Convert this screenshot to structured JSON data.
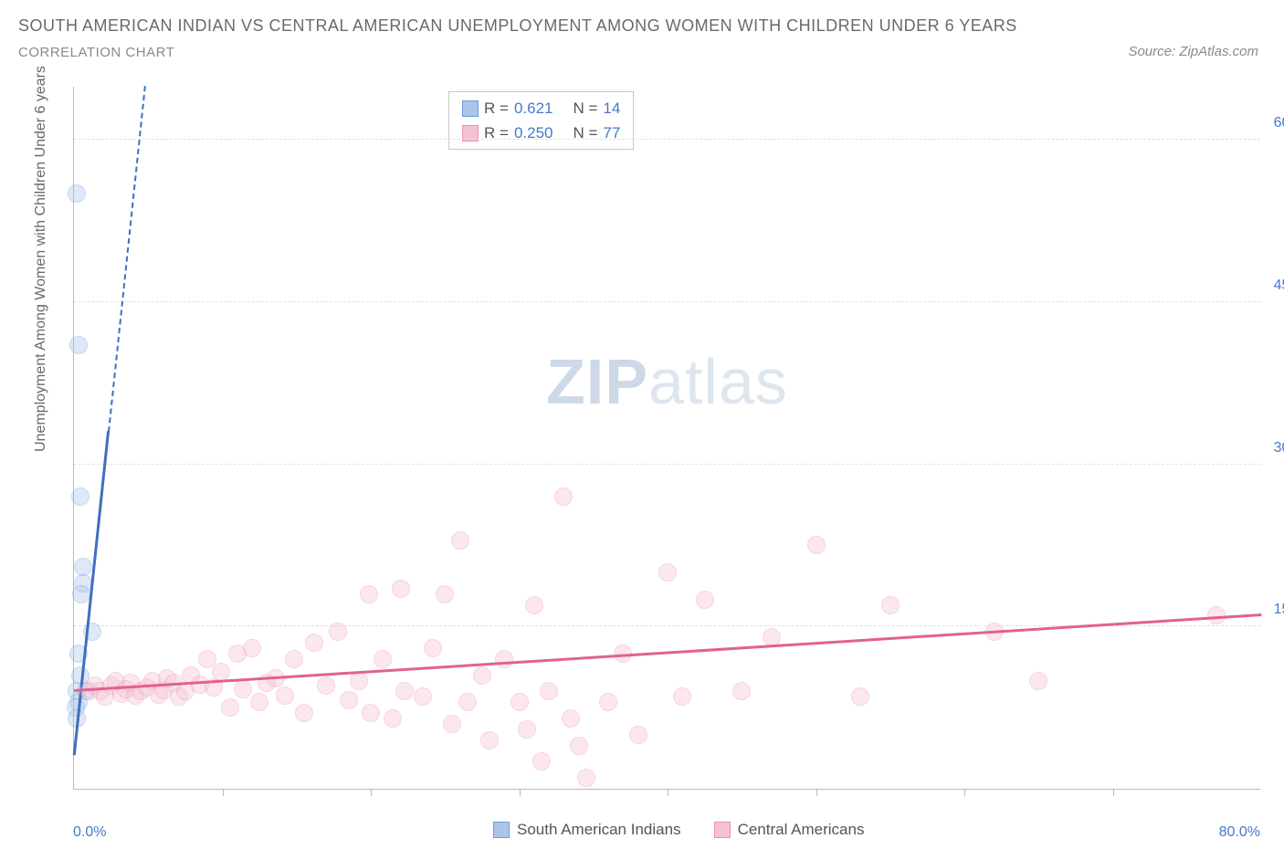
{
  "title": "SOUTH AMERICAN INDIAN VS CENTRAL AMERICAN UNEMPLOYMENT AMONG WOMEN WITH CHILDREN UNDER 6 YEARS",
  "subtitle": "CORRELATION CHART",
  "source": "Source: ZipAtlas.com",
  "ylabel": "Unemployment Among Women with Children Under 6 years",
  "watermark_a": "ZIP",
  "watermark_b": "atlas",
  "chart": {
    "type": "scatter",
    "xlim": [
      0,
      80
    ],
    "ylim": [
      0,
      65
    ],
    "x_axis_labels": {
      "left": "0.0%",
      "right": "80.0%"
    },
    "y_ticks": [
      {
        "v": 15,
        "label": "15.0%"
      },
      {
        "v": 30,
        "label": "30.0%"
      },
      {
        "v": 45,
        "label": "45.0%"
      },
      {
        "v": 60,
        "label": "60.0%"
      }
    ],
    "x_tick_positions": [
      10,
      20,
      30,
      40,
      50,
      60,
      70
    ],
    "grid_color": "#e0e0e0",
    "axis_color": "#b8b8b8",
    "background_color": "#ffffff",
    "marker_radius": 10,
    "marker_opacity": 0.38,
    "label_fontsize": 16,
    "tick_color": "#4878c8"
  },
  "series": [
    {
      "name": "South American Indians",
      "fill": "#a9c5ea",
      "stroke": "#6f9bd8",
      "trend_color": "#3f6fbf",
      "trend": {
        "x1": 0.0,
        "y1": 3.0,
        "x2": 2.3,
        "y2": 33.0,
        "dash_to_y": 65.0
      },
      "points": [
        [
          0.2,
          55.0
        ],
        [
          0.3,
          41.0
        ],
        [
          0.4,
          27.0
        ],
        [
          0.6,
          20.5
        ],
        [
          0.6,
          19.0
        ],
        [
          0.5,
          18.0
        ],
        [
          1.2,
          14.5
        ],
        [
          0.3,
          12.5
        ],
        [
          0.4,
          10.5
        ],
        [
          0.8,
          9.0
        ],
        [
          0.2,
          9.0
        ],
        [
          0.3,
          8.0
        ],
        [
          0.15,
          7.5
        ],
        [
          0.2,
          6.5
        ]
      ]
    },
    {
      "name": "Central Americans",
      "fill": "#f6c2d1",
      "stroke": "#eb8fb0",
      "trend_color": "#e26092",
      "trend": {
        "x1": 0.0,
        "y1": 9.0,
        "x2": 80.0,
        "y2": 16.0
      },
      "points": [
        [
          1.0,
          9.0
        ],
        [
          1.4,
          9.5
        ],
        [
          1.8,
          9.0
        ],
        [
          2.1,
          8.5
        ],
        [
          2.5,
          9.5
        ],
        [
          2.8,
          10.0
        ],
        [
          3.2,
          8.8
        ],
        [
          3.5,
          9.2
        ],
        [
          3.8,
          9.8
        ],
        [
          4.1,
          8.6
        ],
        [
          4.5,
          9.0
        ],
        [
          4.9,
          9.4
        ],
        [
          5.3,
          10.0
        ],
        [
          5.7,
          8.7
        ],
        [
          6.0,
          9.1
        ],
        [
          6.3,
          10.2
        ],
        [
          6.7,
          9.8
        ],
        [
          7.1,
          8.5
        ],
        [
          7.5,
          9.0
        ],
        [
          7.9,
          10.5
        ],
        [
          8.5,
          9.6
        ],
        [
          9.0,
          12.0
        ],
        [
          9.4,
          9.4
        ],
        [
          9.9,
          10.8
        ],
        [
          10.5,
          7.5
        ],
        [
          11.0,
          12.5
        ],
        [
          11.4,
          9.2
        ],
        [
          12.0,
          13.0
        ],
        [
          12.5,
          8.0
        ],
        [
          13.0,
          9.8
        ],
        [
          13.6,
          10.2
        ],
        [
          14.2,
          8.6
        ],
        [
          14.8,
          12.0
        ],
        [
          15.5,
          7.0
        ],
        [
          16.2,
          13.5
        ],
        [
          17.0,
          9.5
        ],
        [
          17.8,
          14.5
        ],
        [
          18.5,
          8.2
        ],
        [
          19.2,
          10.0
        ],
        [
          19.9,
          18.0
        ],
        [
          20.0,
          7.0
        ],
        [
          20.8,
          12.0
        ],
        [
          21.5,
          6.5
        ],
        [
          22.0,
          18.5
        ],
        [
          22.3,
          9.0
        ],
        [
          23.5,
          8.5
        ],
        [
          24.2,
          13.0
        ],
        [
          25.0,
          18.0
        ],
        [
          25.5,
          6.0
        ],
        [
          26.0,
          23.0
        ],
        [
          26.5,
          8.0
        ],
        [
          27.5,
          10.5
        ],
        [
          28.0,
          4.5
        ],
        [
          29.0,
          12.0
        ],
        [
          30.0,
          8.0
        ],
        [
          30.5,
          5.5
        ],
        [
          31.0,
          17.0
        ],
        [
          31.5,
          2.5
        ],
        [
          32.0,
          9.0
        ],
        [
          33.0,
          27.0
        ],
        [
          33.5,
          6.5
        ],
        [
          34.0,
          4.0
        ],
        [
          34.5,
          1.0
        ],
        [
          36.0,
          8.0
        ],
        [
          37.0,
          12.5
        ],
        [
          38.0,
          5.0
        ],
        [
          40.0,
          20.0
        ],
        [
          41.0,
          8.5
        ],
        [
          42.5,
          17.5
        ],
        [
          45.0,
          9.0
        ],
        [
          47.0,
          14.0
        ],
        [
          50.0,
          22.5
        ],
        [
          53.0,
          8.5
        ],
        [
          55.0,
          17.0
        ],
        [
          62.0,
          14.5
        ],
        [
          77.0,
          16.0
        ],
        [
          65.0,
          10.0
        ]
      ]
    }
  ],
  "stats": [
    {
      "swatch_fill": "#a9c5ea",
      "swatch_stroke": "#6f9bd8",
      "r": "0.621",
      "n": "14"
    },
    {
      "swatch_fill": "#f6c2d1",
      "swatch_stroke": "#eb8fb0",
      "r": "0.250",
      "n": "77"
    }
  ],
  "stats_labels": {
    "r": "R =",
    "n": "N ="
  },
  "legend": [
    {
      "swatch_fill": "#a9c5ea",
      "swatch_stroke": "#6f9bd8",
      "label": "South American Indians"
    },
    {
      "swatch_fill": "#f6c2d1",
      "swatch_stroke": "#eb8fb0",
      "label": "Central Americans"
    }
  ]
}
